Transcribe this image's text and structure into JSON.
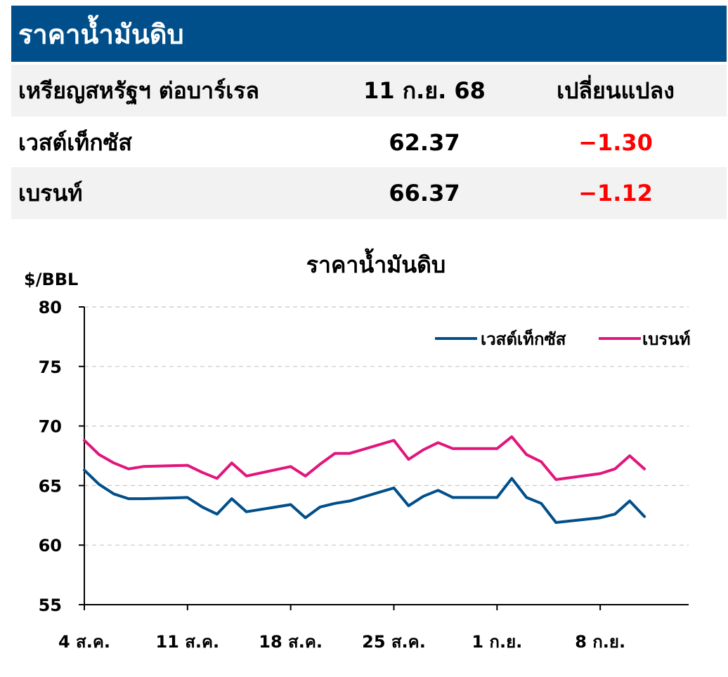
{
  "header": {
    "title": "ราคาน้ำมันดิบ"
  },
  "table": {
    "columns": [
      "เหรียญสหรัฐฯ ต่อบาร์เรล",
      "11 ก.ย. 68",
      "เปลี่ยนแปลง"
    ],
    "rows": [
      {
        "name": "เวสต์เท็กซัส",
        "price": "62.37",
        "change": "−1.30"
      },
      {
        "name": "เบรนท์",
        "price": "66.37",
        "change": "−1.12"
      }
    ]
  },
  "colors": {
    "header_bg": "#004f8b",
    "wti": "#004f8b",
    "brent": "#e0167d",
    "negative": "#ff0000"
  },
  "chart_data": {
    "type": "line",
    "title": "ราคาน้ำมันดิบ",
    "ylabel": "$/BBL",
    "ylim": [
      55,
      80
    ],
    "yticks": [
      55,
      60,
      65,
      70,
      75,
      80
    ],
    "xlim": [
      "2025-08-04",
      "2025-09-14"
    ],
    "xticks": [
      {
        "date": "2025-08-04",
        "label": "4 ส.ค."
      },
      {
        "date": "2025-08-11",
        "label": "11 ส.ค."
      },
      {
        "date": "2025-08-18",
        "label": "18 ส.ค."
      },
      {
        "date": "2025-08-25",
        "label": "25 ส.ค."
      },
      {
        "date": "2025-09-01",
        "label": "1 ก.ย."
      },
      {
        "date": "2025-09-08",
        "label": "8 ก.ย."
      }
    ],
    "legend": "top-right",
    "grid": true,
    "series": [
      {
        "name": "เวสต์เท็กซัส",
        "color": "#004f8b",
        "points": [
          [
            "2025-08-04",
            66.3
          ],
          [
            "2025-08-05",
            65.1
          ],
          [
            "2025-08-06",
            64.3
          ],
          [
            "2025-08-07",
            63.9
          ],
          [
            "2025-08-08",
            63.9
          ],
          [
            "2025-08-11",
            64.0
          ],
          [
            "2025-08-12",
            63.2
          ],
          [
            "2025-08-13",
            62.6
          ],
          [
            "2025-08-14",
            63.9
          ],
          [
            "2025-08-15",
            62.8
          ],
          [
            "2025-08-18",
            63.4
          ],
          [
            "2025-08-19",
            62.3
          ],
          [
            "2025-08-20",
            63.2
          ],
          [
            "2025-08-21",
            63.5
          ],
          [
            "2025-08-22",
            63.7
          ],
          [
            "2025-08-25",
            64.8
          ],
          [
            "2025-08-26",
            63.3
          ],
          [
            "2025-08-27",
            64.1
          ],
          [
            "2025-08-28",
            64.6
          ],
          [
            "2025-08-29",
            64.0
          ],
          [
            "2025-09-01",
            64.0
          ],
          [
            "2025-09-02",
            65.6
          ],
          [
            "2025-09-03",
            64.0
          ],
          [
            "2025-09-04",
            63.5
          ],
          [
            "2025-09-05",
            61.9
          ],
          [
            "2025-09-08",
            62.3
          ],
          [
            "2025-09-09",
            62.6
          ],
          [
            "2025-09-10",
            63.7
          ],
          [
            "2025-09-11",
            62.4
          ]
        ]
      },
      {
        "name": "เบรนท์",
        "color": "#e0167d",
        "points": [
          [
            "2025-08-04",
            68.8
          ],
          [
            "2025-08-05",
            67.6
          ],
          [
            "2025-08-06",
            66.9
          ],
          [
            "2025-08-07",
            66.4
          ],
          [
            "2025-08-08",
            66.6
          ],
          [
            "2025-08-11",
            66.7
          ],
          [
            "2025-08-12",
            66.1
          ],
          [
            "2025-08-13",
            65.6
          ],
          [
            "2025-08-14",
            66.9
          ],
          [
            "2025-08-15",
            65.8
          ],
          [
            "2025-08-18",
            66.6
          ],
          [
            "2025-08-19",
            65.8
          ],
          [
            "2025-08-20",
            66.8
          ],
          [
            "2025-08-21",
            67.7
          ],
          [
            "2025-08-22",
            67.7
          ],
          [
            "2025-08-25",
            68.8
          ],
          [
            "2025-08-26",
            67.2
          ],
          [
            "2025-08-27",
            68.0
          ],
          [
            "2025-08-28",
            68.6
          ],
          [
            "2025-08-29",
            68.1
          ],
          [
            "2025-09-01",
            68.1
          ],
          [
            "2025-09-02",
            69.1
          ],
          [
            "2025-09-03",
            67.6
          ],
          [
            "2025-09-04",
            67.0
          ],
          [
            "2025-09-05",
            65.5
          ],
          [
            "2025-09-08",
            66.0
          ],
          [
            "2025-09-09",
            66.4
          ],
          [
            "2025-09-10",
            67.5
          ],
          [
            "2025-09-11",
            66.4
          ]
        ]
      }
    ]
  }
}
